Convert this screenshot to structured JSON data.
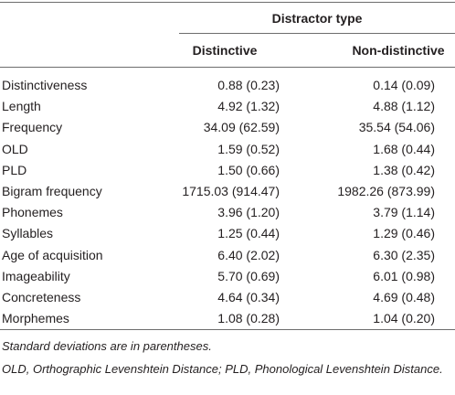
{
  "table": {
    "group_header": "Distractor type",
    "columns": [
      null,
      "Distinctive",
      "Non-distinctive"
    ],
    "rows": [
      [
        "Distinctiveness",
        "0.88 (0.23)",
        "0.14 (0.09)"
      ],
      [
        "Length",
        "4.92 (1.32)",
        "4.88 (1.12)"
      ],
      [
        "Frequency",
        "34.09 (62.59)",
        "35.54 (54.06)"
      ],
      [
        "OLD",
        "1.59 (0.52)",
        "1.68 (0.44)"
      ],
      [
        "PLD",
        "1.50 (0.66)",
        "1.38 (0.42)"
      ],
      [
        "Bigram frequency",
        "1715.03 (914.47)",
        "1982.26 (873.99)"
      ],
      [
        "Phonemes",
        "3.96 (1.20)",
        "3.79 (1.14)"
      ],
      [
        "Syllables",
        "1.25 (0.44)",
        "1.29 (0.46)"
      ],
      [
        "Age of acquisition",
        "6.40 (2.02)",
        "6.30 (2.35)"
      ],
      [
        "Imageability",
        "5.70 (0.69)",
        "6.01 (0.98)"
      ],
      [
        "Concreteness",
        "4.64 (0.34)",
        "4.69 (0.48)"
      ],
      [
        "Morphemes",
        "1.08 (0.28)",
        "1.04 (0.20)"
      ]
    ],
    "notes": [
      "Standard deviations are in parentheses.",
      "OLD, Orthographic Levenshtein Distance; PLD, Phonological Levenshtein Distance."
    ]
  }
}
